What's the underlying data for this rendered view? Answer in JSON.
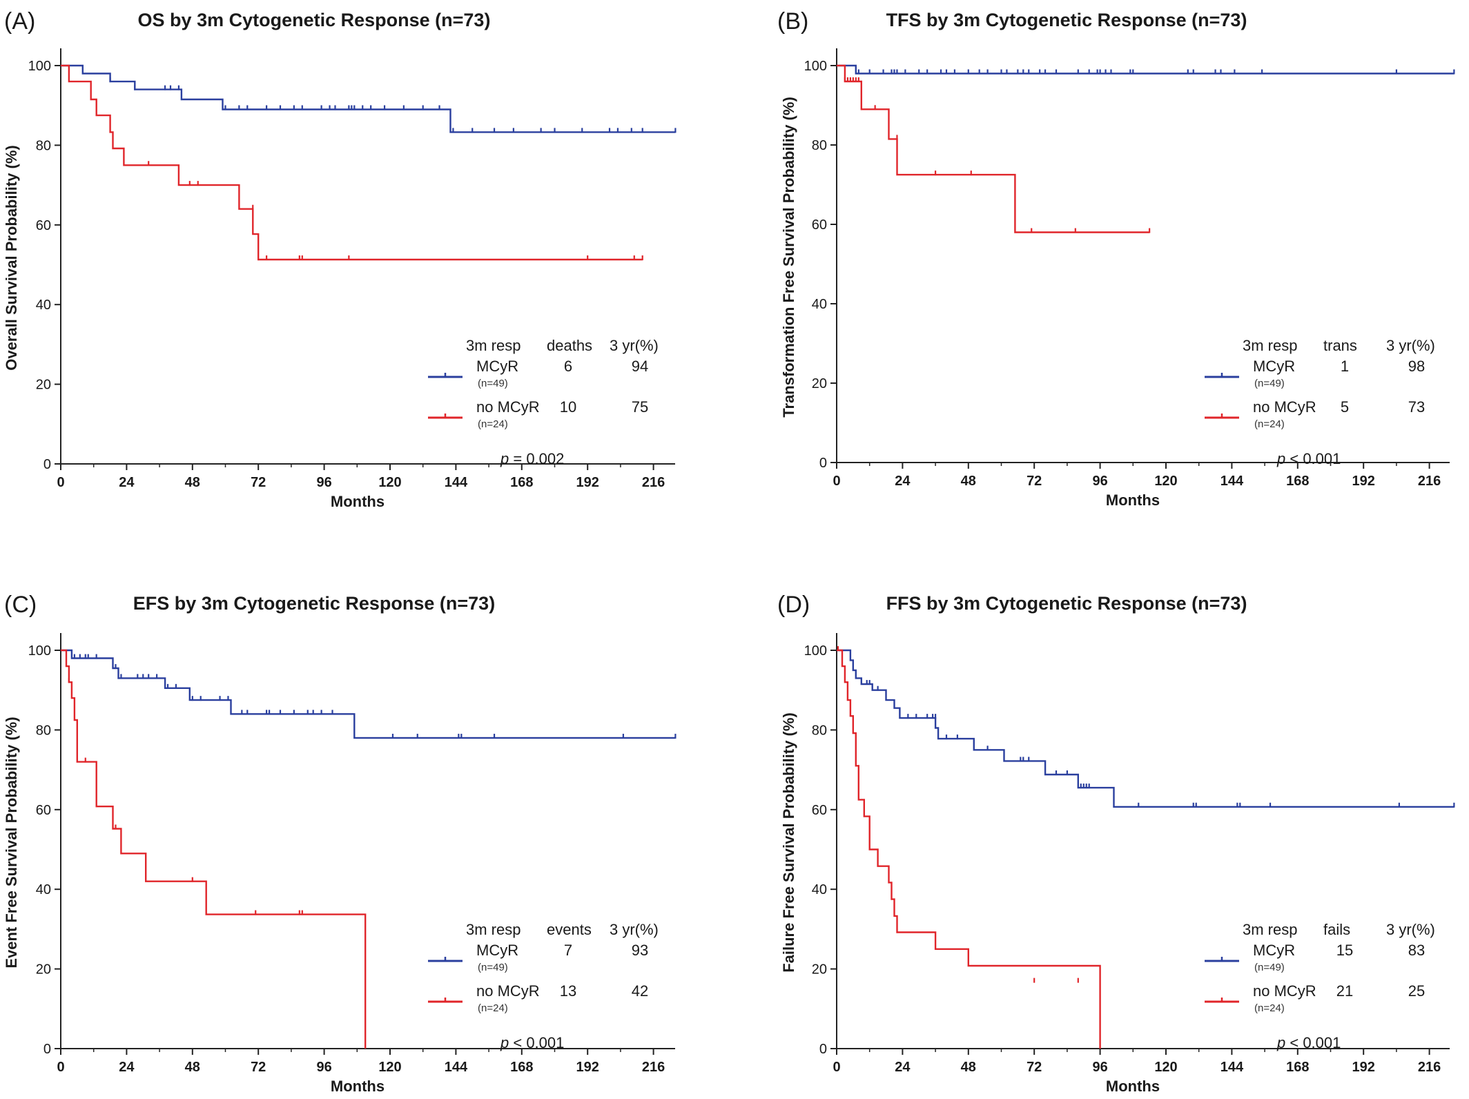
{
  "chart_data": [
    {
      "type": "line",
      "panel_label": "(A)",
      "title": "OS by 3m Cytogenetic Response (n=73)",
      "xlabel": "Months",
      "ylabel": "Overall Survival Probability (%)",
      "xlim": [
        0,
        228
      ],
      "ylim": [
        0,
        100
      ],
      "xticks": [
        "0",
        "24",
        "48",
        "72",
        "96",
        "120",
        "144",
        "168",
        "192",
        "216"
      ],
      "yticks": [
        "0",
        "20",
        "40",
        "60",
        "80",
        "100"
      ],
      "legend": {
        "headers": [
          "3m resp",
          "deaths",
          "3 yr(%)"
        ],
        "rows": [
          {
            "label": "MCyR",
            "n": "(n=49)",
            "count": "6",
            "pct": "94"
          },
          {
            "label": "no MCyR",
            "n": "(n=24)",
            "count": "10",
            "pct": "75"
          }
        ],
        "p_prefix": "p",
        "p_value": " = 0.002"
      },
      "series": [
        {
          "name": "MCyR",
          "color": "#2a3f9e",
          "x": [
            0,
            8,
            18,
            27,
            44,
            59,
            142,
            224
          ],
          "y": [
            100,
            98,
            96,
            94,
            91.5,
            89,
            83.3,
            83.3
          ],
          "censor_x": [
            18,
            27,
            38,
            40,
            43,
            60,
            65,
            68,
            75,
            80,
            85,
            88,
            95,
            98,
            100,
            105,
            106,
            107,
            110,
            113,
            118,
            125,
            132,
            138,
            143,
            150,
            158,
            165,
            175,
            180,
            190,
            200,
            203,
            208,
            212,
            224
          ],
          "censor_y": [
            96,
            94,
            94,
            94,
            94,
            89,
            89,
            89,
            89,
            89,
            89,
            89,
            89,
            89,
            89,
            89,
            89,
            89,
            89,
            89,
            89,
            89,
            89,
            89,
            83.3,
            83.3,
            83.3,
            83.3,
            83.3,
            83.3,
            83.3,
            83.3,
            83.3,
            83.3,
            83.3,
            83.3
          ]
        },
        {
          "name": "no MCyR",
          "color": "#e0252a",
          "x": [
            0,
            3,
            11,
            13,
            18,
            19,
            23,
            43,
            65,
            70,
            72,
            212
          ],
          "y": [
            100,
            96,
            91.5,
            87.5,
            83.3,
            79.2,
            75,
            70,
            64,
            57.7,
            51.3,
            51.3
          ],
          "censor_x": [
            32,
            47,
            50,
            70,
            75,
            87,
            88,
            105,
            192,
            209,
            212
          ],
          "censor_y": [
            75,
            70,
            70,
            64,
            51.3,
            51.3,
            51.3,
            51.3,
            51.3,
            51.3,
            51.3
          ]
        }
      ]
    },
    {
      "type": "line",
      "panel_label": "(B)",
      "title": "TFS by 3m Cytogenetic Response (n=73)",
      "xlabel": "Months",
      "ylabel": "Transformation Free Survival Probability (%)",
      "xlim": [
        0,
        228
      ],
      "ylim": [
        0,
        100
      ],
      "xticks": [
        "0",
        "24",
        "48",
        "72",
        "96",
        "120",
        "144",
        "168",
        "192",
        "216"
      ],
      "yticks": [
        "0",
        "20",
        "40",
        "60",
        "80",
        "100"
      ],
      "legend": {
        "headers": [
          "3m resp",
          "trans",
          "3 yr(%)"
        ],
        "rows": [
          {
            "label": "MCyR",
            "n": "(n=49)",
            "count": "1",
            "pct": "98"
          },
          {
            "label": "no MCyR",
            "n": "(n=24)",
            "count": "5",
            "pct": "73"
          }
        ],
        "p_prefix": "p",
        "p_value": " < 0.001"
      },
      "series": [
        {
          "name": "MCyR",
          "color": "#2a3f9e",
          "x": [
            0,
            7,
            225
          ],
          "y": [
            100,
            98,
            98
          ],
          "censor_x": [
            8,
            12,
            17,
            20,
            21,
            22,
            25,
            30,
            33,
            38,
            40,
            43,
            48,
            52,
            55,
            60,
            62,
            66,
            68,
            70,
            74,
            76,
            80,
            88,
            92,
            95,
            96,
            98,
            100,
            107,
            108,
            128,
            130,
            138,
            140,
            145,
            155,
            204,
            225
          ],
          "censor_y": [
            98,
            98,
            98,
            98,
            98,
            98,
            98,
            98,
            98,
            98,
            98,
            98,
            98,
            98,
            98,
            98,
            98,
            98,
            98,
            98,
            98,
            98,
            98,
            98,
            98,
            98,
            98,
            98,
            98,
            98,
            98,
            98,
            98,
            98,
            98,
            98,
            98,
            98,
            98
          ]
        },
        {
          "name": "no MCyR",
          "color": "#e0252a",
          "x": [
            0,
            3,
            9,
            19,
            22,
            65,
            114
          ],
          "y": [
            100,
            96,
            89,
            81.5,
            72.5,
            58,
            58
          ],
          "censor_x": [
            3,
            4,
            5,
            6,
            7,
            8,
            14,
            22,
            36,
            49,
            71,
            87,
            114
          ],
          "censor_y": [
            96,
            96,
            96,
            96,
            96,
            96,
            89,
            81.5,
            72.5,
            72.5,
            58,
            58,
            58
          ]
        }
      ]
    },
    {
      "type": "line",
      "panel_label": "(C)",
      "title": "EFS by 3m Cytogenetic Response (n=73)",
      "xlabel": "Months",
      "ylabel": "Event Free Survival Probability (%)",
      "xlim": [
        0,
        228
      ],
      "ylim": [
        0,
        100
      ],
      "xticks": [
        "0",
        "24",
        "48",
        "72",
        "96",
        "120",
        "144",
        "168",
        "192",
        "216"
      ],
      "yticks": [
        "0",
        "20",
        "40",
        "60",
        "80",
        "100"
      ],
      "legend": {
        "headers": [
          "3m resp",
          "events",
          "3 yr(%)"
        ],
        "rows": [
          {
            "label": "MCyR",
            "n": "(n=49)",
            "count": "7",
            "pct": "93"
          },
          {
            "label": "no MCyR",
            "n": "(n=24)",
            "count": "13",
            "pct": "42"
          }
        ],
        "p_prefix": "p",
        "p_value": " < 0.001"
      },
      "series": [
        {
          "name": "MCyR",
          "color": "#2a3f9e",
          "x": [
            0,
            4,
            19,
            21,
            38,
            47,
            62,
            107,
            224
          ],
          "y": [
            100,
            98,
            95.5,
            93,
            90.5,
            87.5,
            84,
            78,
            78
          ],
          "censor_x": [
            5,
            7,
            9,
            10,
            13,
            20,
            22,
            28,
            30,
            32,
            35,
            39,
            42,
            48,
            51,
            58,
            61,
            66,
            68,
            75,
            76,
            80,
            85,
            90,
            92,
            95,
            99,
            121,
            130,
            145,
            146,
            158,
            205,
            224
          ],
          "censor_y": [
            98,
            98,
            98,
            98,
            98,
            95.5,
            93,
            93,
            93,
            93,
            93,
            90.5,
            90.5,
            87.5,
            87.5,
            87.5,
            87.5,
            84,
            84,
            84,
            84,
            84,
            84,
            84,
            84,
            84,
            84,
            78,
            78,
            78,
            78,
            78,
            78,
            78
          ]
        },
        {
          "name": "no MCyR",
          "color": "#e0252a",
          "x": [
            0,
            2,
            3,
            4,
            5,
            6,
            13,
            19,
            22,
            31,
            53,
            111,
            111
          ],
          "y": [
            100,
            96,
            92,
            88,
            82.5,
            72,
            60.8,
            55.2,
            49,
            42,
            33.7,
            33.7,
            0
          ],
          "censor_x": [
            3,
            9,
            20,
            48,
            71,
            87,
            88
          ],
          "censor_y": [
            92,
            72,
            55.2,
            42,
            33.7,
            33.7,
            33.7
          ]
        }
      ]
    },
    {
      "type": "line",
      "panel_label": "(D)",
      "title": "FFS by 3m Cytogenetic Response (n=73)",
      "xlabel": "Months",
      "ylabel": "Failure Free Survival Probability (%)",
      "xlim": [
        0,
        228
      ],
      "ylim": [
        0,
        100
      ],
      "xticks": [
        "0",
        "24",
        "48",
        "72",
        "96",
        "120",
        "144",
        "168",
        "192",
        "216"
      ],
      "yticks": [
        "0",
        "20",
        "40",
        "60",
        "80",
        "100"
      ],
      "legend": {
        "headers": [
          "3m resp",
          "fails",
          "3 yr(%)"
        ],
        "rows": [
          {
            "label": "MCyR",
            "n": "(n=49)",
            "count": "15",
            "pct": "83"
          },
          {
            "label": "no MCyR",
            "n": "(n=24)",
            "count": "21",
            "pct": "25"
          }
        ],
        "p_prefix": "p",
        "p_value": " < 0.001"
      },
      "series": [
        {
          "name": "MCyR",
          "color": "#2a3f9e",
          "x": [
            0,
            5,
            6,
            7,
            9,
            13,
            18,
            21,
            23,
            36,
            37,
            50,
            61,
            76,
            88,
            101,
            225
          ],
          "y": [
            100,
            97.5,
            95,
            93,
            91.5,
            90,
            87.5,
            85.5,
            83,
            80.5,
            77.8,
            75,
            72.2,
            68.8,
            65.5,
            60.7,
            60.7
          ],
          "censor_x": [
            11,
            12,
            15,
            26,
            29,
            33,
            35,
            36,
            40,
            44,
            55,
            67,
            68,
            70,
            80,
            84,
            89,
            90,
            91,
            92,
            110,
            130,
            131,
            146,
            147,
            158,
            205,
            225
          ],
          "censor_y": [
            91.5,
            91.5,
            90,
            83,
            83,
            83,
            83,
            83,
            77.8,
            77.8,
            75,
            72.2,
            72.2,
            72.2,
            68.8,
            68.8,
            65.5,
            65.5,
            65.5,
            65.5,
            60.7,
            60.7,
            60.7,
            60.7,
            60.7,
            60.7,
            60.7,
            60.7
          ]
        },
        {
          "name": "no MCyR",
          "color": "#e0252a",
          "x": [
            0,
            2,
            3,
            4,
            5,
            6,
            7,
            8,
            10,
            12,
            15,
            19,
            20,
            21,
            22,
            36,
            48,
            96,
            96
          ],
          "y": [
            100,
            96,
            92,
            87.5,
            83.5,
            79.2,
            71,
            62.5,
            58.3,
            50,
            45.8,
            41.7,
            37.5,
            33.3,
            29.2,
            25,
            20.8,
            16.7,
            0
          ],
          "censor_x": [
            0.5,
            72,
            88
          ],
          "censor_y": [
            100,
            16.7,
            16.7
          ]
        }
      ]
    }
  ]
}
